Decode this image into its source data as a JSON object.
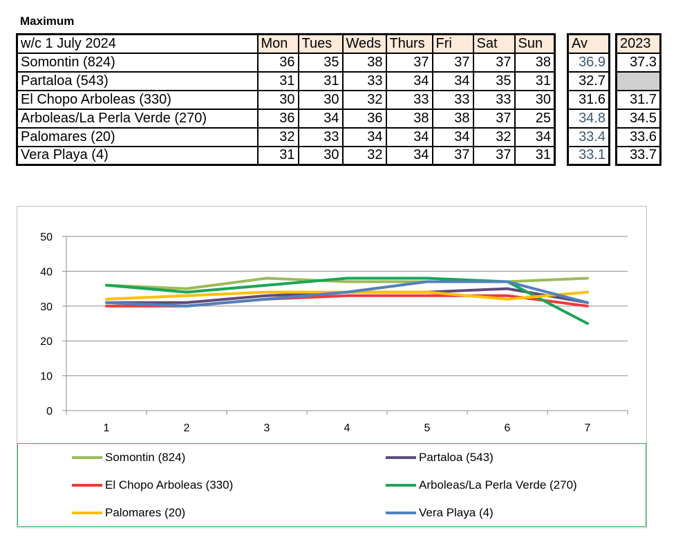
{
  "title": "Maximum",
  "table": {
    "header": [
      "w/c  1 July 2024",
      "Mon",
      "Tues",
      "Weds",
      "Thurs",
      "Fri",
      "Sat",
      "Sun"
    ],
    "av_header": "Av",
    "y2023_header": "2023",
    "rows": [
      {
        "station": "Somontin (824)",
        "values": [
          "36",
          "35",
          "38",
          "37",
          "37",
          "37",
          "38"
        ],
        "av": "36.9",
        "y2023": "37.3"
      },
      {
        "station": "Partaloa (543)",
        "values": [
          "31",
          "31",
          "33",
          "34",
          "34",
          "35",
          "31"
        ],
        "av": "32.7",
        "y2023": ""
      },
      {
        "station": "El Chopo  Arboleas (330)",
        "values": [
          "30",
          "30",
          "32",
          "33",
          "33",
          "33",
          "30"
        ],
        "av": "31.6",
        "y2023": "31.7"
      },
      {
        "station": "Arboleas/La Perla Verde (270)",
        "values": [
          "36",
          "34",
          "36",
          "38",
          "38",
          "37",
          "25"
        ],
        "av": "34.8",
        "y2023": "34.5"
      },
      {
        "station": "Palomares (20)",
        "values": [
          "32",
          "33",
          "34",
          "34",
          "34",
          "32",
          "34"
        ],
        "av": "33.4",
        "y2023": "33.6"
      },
      {
        "station": "Vera Playa (4)",
        "values": [
          "31",
          "30",
          "32",
          "34",
          "37",
          "37",
          "31"
        ],
        "av": "33.1",
        "y2023": "33.7"
      }
    ]
  },
  "chart_data": {
    "type": "line",
    "x": [
      1,
      2,
      3,
      4,
      5,
      6,
      7
    ],
    "x_ticks": [
      "1",
      "2",
      "3",
      "4",
      "5",
      "6",
      "7"
    ],
    "y_ticks": [
      "0",
      "10",
      "20",
      "30",
      "40",
      "50"
    ],
    "ylim": [
      0,
      50
    ],
    "grid": true,
    "legend_position": "bottom",
    "series": [
      {
        "name": "Somontin (824)",
        "color": "#9bbb59",
        "values": [
          36,
          35,
          38,
          37,
          37,
          37,
          38
        ]
      },
      {
        "name": "Partaloa (543)",
        "color": "#5f4a7b",
        "values": [
          31,
          31,
          33,
          34,
          34,
          35,
          31
        ]
      },
      {
        "name": "El Chopo  Arboleas (330)",
        "color": "#ee3a3a",
        "values": [
          30,
          30,
          32,
          33,
          33,
          33,
          30
        ]
      },
      {
        "name": "Arboleas/La Perla Verde (270)",
        "color": "#1aa655",
        "values": [
          36,
          34,
          36,
          38,
          38,
          37,
          25
        ]
      },
      {
        "name": "Palomares (20)",
        "color": "#ffc000",
        "values": [
          32,
          33,
          34,
          34,
          34,
          32,
          34
        ]
      },
      {
        "name": "Vera Playa (4)",
        "color": "#4f81bd",
        "values": [
          31,
          30,
          32,
          34,
          37,
          37,
          31
        ]
      }
    ]
  }
}
